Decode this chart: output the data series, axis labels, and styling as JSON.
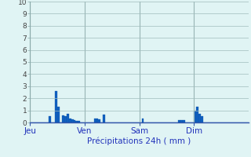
{
  "title": "Précipitations 24h ( mm )",
  "background_color": "#e0f4f4",
  "plot_bg_color": "#e0f4f4",
  "bar_color": "#1060c0",
  "bar_edge_color": "#0a50a0",
  "ylim": [
    0,
    10
  ],
  "yticks": [
    0,
    1,
    2,
    3,
    4,
    5,
    6,
    7,
    8,
    9,
    10
  ],
  "grid_color": "#a0bcbc",
  "day_labels": [
    "Jeu",
    "Ven",
    "Sam",
    "Dim"
  ],
  "day_positions": [
    0,
    24,
    48,
    72
  ],
  "n_bars": 96,
  "values": [
    0,
    0,
    0,
    0,
    0,
    0,
    0,
    0,
    0.5,
    0,
    0,
    2.6,
    1.3,
    0,
    0.6,
    0.5,
    0.7,
    0.3,
    0.25,
    0.2,
    0.15,
    0.1,
    0,
    0,
    0,
    0,
    0,
    0,
    0.3,
    0.3,
    0.25,
    0,
    0.65,
    0,
    0,
    0,
    0,
    0,
    0,
    0,
    0,
    0,
    0,
    0,
    0,
    0,
    0,
    0,
    0,
    0.3,
    0,
    0,
    0,
    0,
    0,
    0,
    0,
    0,
    0,
    0,
    0,
    0,
    0,
    0,
    0,
    0.2,
    0.2,
    0.2,
    0,
    0,
    0,
    0,
    1.0,
    1.3,
    0.7,
    0.5,
    0,
    0,
    0,
    0,
    0,
    0,
    0,
    0,
    0,
    0,
    0,
    0,
    0,
    0,
    0,
    0,
    0,
    0,
    0,
    0
  ],
  "vline_color": "#8aaaaa",
  "xlabel_color": "#2233bb",
  "xtick_color": "#2233bb",
  "ytick_color": "#444444",
  "spine_color": "#3355aa",
  "figsize": [
    3.2,
    2.0
  ],
  "dpi": 100
}
